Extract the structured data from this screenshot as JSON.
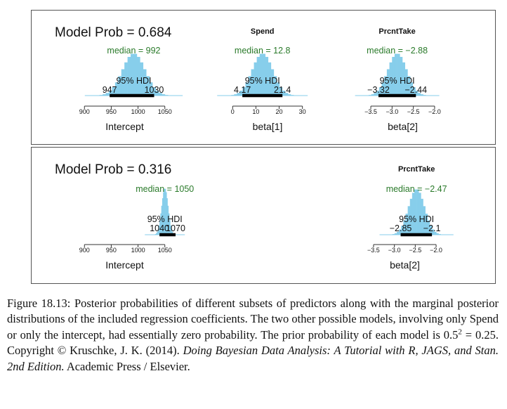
{
  "colors": {
    "histogram": "#87CEEB",
    "hdi_bar": "#000000",
    "median_text": "#2a7a2a",
    "axis": "#333333"
  },
  "chart_data": [
    {
      "type": "histogram_panel",
      "title": "Model Prob = 0.684",
      "subplots": [
        {
          "heading": "",
          "xlabel": "Intercept",
          "median_label": "median = 992",
          "median": 992,
          "hdi_label": "95% HDI",
          "hdi_low": 947,
          "hdi_high": 1030,
          "hdi_low_label": "947",
          "hdi_high_label": "1030",
          "xlim": [
            880,
            1070
          ],
          "ticks": [
            900,
            950,
            1000,
            1050
          ],
          "tick_labels": [
            "900",
            "950",
            "1000",
            "1050"
          ],
          "sd": 21
        },
        {
          "heading": "Spend",
          "xlabel": "beta[1]",
          "median_label": "median = 12.8",
          "median": 12.8,
          "hdi_label": "95% HDI",
          "hdi_low": 4.17,
          "hdi_high": 21.4,
          "hdi_low_label": "4.17",
          "hdi_high_label": "21.4",
          "xlim": [
            -1,
            31
          ],
          "ticks": [
            0,
            10,
            20,
            30
          ],
          "tick_labels": [
            "0",
            "10",
            "20",
            "30"
          ],
          "sd": 4.4
        },
        {
          "heading": "PrcntTake",
          "xlabel": "beta[2]",
          "median_label": "median = −2.88",
          "median": -2.88,
          "hdi_label": "95% HDI",
          "hdi_low": -3.32,
          "hdi_high": -2.44,
          "hdi_low_label": "−3.32",
          "hdi_high_label": "−2.44",
          "xlim": [
            -3.6,
            -1.9
          ],
          "ticks": [
            -3.5,
            -3.0,
            -2.5,
            -2.0
          ],
          "tick_labels": [
            "−3.5",
            "−3.0",
            "−2.5",
            "−2.0"
          ],
          "sd": 0.22
        }
      ]
    },
    {
      "type": "histogram_panel",
      "title": "Model Prob = 0.316",
      "subplots": [
        {
          "heading": "",
          "xlabel": "Intercept",
          "median_label": "median = 1050",
          "median": 1050,
          "hdi_label": "95% HDI",
          "hdi_low": 1040,
          "hdi_high": 1070,
          "hdi_low_label": "1040",
          "hdi_high_label": "1070",
          "xlim": [
            880,
            1070
          ],
          "ticks": [
            900,
            950,
            1000,
            1050
          ],
          "tick_labels": [
            "900",
            "950",
            "1000",
            "1050"
          ],
          "sd": 6
        },
        {
          "heading": "PrcntTake",
          "xlabel": "beta[2]",
          "median_label": "median = −2.47",
          "median": -2.47,
          "hdi_label": "95% HDI",
          "hdi_low": -2.85,
          "hdi_high": -2.1,
          "hdi_low_label": "−2.85",
          "hdi_high_label": "−2.1",
          "xlim": [
            -3.6,
            -1.9
          ],
          "ticks": [
            -3.5,
            -3.0,
            -2.5,
            -2.0
          ],
          "tick_labels": [
            "−3.5",
            "−3.0",
            "−2.5",
            "−2.0"
          ],
          "sd": 0.19
        }
      ]
    }
  ],
  "caption": {
    "figure_label": "Figure 18.13:",
    "text": "Posterior probabilities of different subsets of predictors along with the marginal posterior distributions of the included regression coefficients. The two other possible models, involving only Spend or only the intercept, had essentially zero probability. The prior probability of each model is ",
    "formula_base": "0.5",
    "formula_exp": "2",
    "formula_rest": " = 0.25. Copyright © Kruschke, J. K. (2014).",
    "book_title": "Doing Bayesian Data Analysis: A Tutorial with R, JAGS, and Stan. 2nd Edition.",
    "publisher": "Academic Press / Elsevier."
  }
}
